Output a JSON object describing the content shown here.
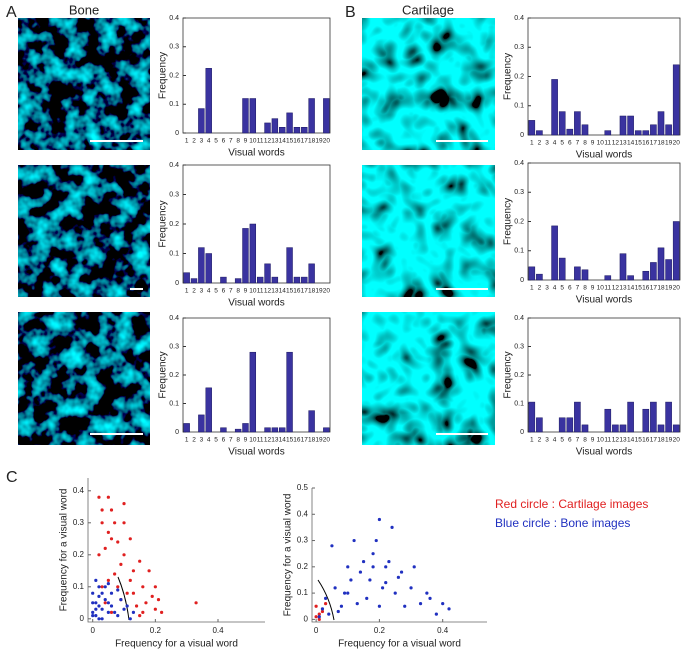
{
  "panel_labels": [
    "A",
    "B",
    "C"
  ],
  "image_titles": [
    "Bone",
    "Cartilage"
  ],
  "chart_data": [
    {
      "type": "bar",
      "xlabel": "Visual words",
      "ylabel": "Frequency",
      "color": "#3a33a0",
      "categories": [
        "1",
        "2",
        "3",
        "4",
        "5",
        "6",
        "7",
        "8",
        "9",
        "10",
        "11",
        "12",
        "13",
        "14",
        "15",
        "16",
        "17",
        "18",
        "19",
        "20"
      ],
      "values": [
        0,
        0,
        0.085,
        0.225,
        0,
        0,
        0,
        0,
        0.12,
        0.12,
        0,
        0.035,
        0.05,
        0.02,
        0.07,
        0.02,
        0.02,
        0.12,
        0,
        0.12
      ],
      "ylim": [
        0,
        0.4
      ],
      "yticks": [
        0,
        0.1,
        0.2,
        0.3,
        0.4
      ]
    },
    {
      "type": "bar",
      "xlabel": "Visual words",
      "ylabel": "Frequency",
      "color": "#3a33a0",
      "categories": [
        "1",
        "2",
        "3",
        "4",
        "5",
        "6",
        "7",
        "8",
        "9",
        "10",
        "11",
        "12",
        "13",
        "14",
        "15",
        "16",
        "17",
        "18",
        "19",
        "20"
      ],
      "values": [
        0.035,
        0.015,
        0.12,
        0.1,
        0,
        0.02,
        0,
        0.015,
        0.185,
        0.2,
        0.02,
        0.065,
        0.02,
        0,
        0.12,
        0.02,
        0.02,
        0.065,
        0,
        0
      ],
      "ylim": [
        0,
        0.4
      ],
      "yticks": [
        0,
        0.1,
        0.2,
        0.3,
        0.4
      ]
    },
    {
      "type": "bar",
      "xlabel": "Visual words",
      "ylabel": "Frequency",
      "color": "#3a33a0",
      "categories": [
        "1",
        "2",
        "3",
        "4",
        "5",
        "6",
        "7",
        "8",
        "9",
        "10",
        "11",
        "12",
        "13",
        "14",
        "15",
        "16",
        "17",
        "18",
        "19",
        "20"
      ],
      "values": [
        0.03,
        0,
        0.06,
        0.155,
        0,
        0.015,
        0,
        0.01,
        0.03,
        0.28,
        0,
        0.015,
        0.015,
        0.015,
        0.28,
        0,
        0,
        0.075,
        0,
        0.015
      ],
      "ylim": [
        0,
        0.4
      ],
      "yticks": [
        0,
        0.1,
        0.2,
        0.3,
        0.4
      ]
    },
    {
      "type": "bar",
      "xlabel": "Visual words",
      "ylabel": "Frequency",
      "color": "#3a33a0",
      "categories": [
        "1",
        "2",
        "3",
        "4",
        "5",
        "6",
        "7",
        "8",
        "9",
        "10",
        "11",
        "12",
        "13",
        "14",
        "15",
        "16",
        "17",
        "18",
        "19",
        "20"
      ],
      "values": [
        0.05,
        0.015,
        0,
        0.19,
        0.08,
        0.02,
        0.08,
        0.035,
        0,
        0,
        0.015,
        0,
        0.065,
        0.065,
        0.015,
        0.015,
        0.035,
        0.08,
        0.035,
        0.24
      ],
      "ylim": [
        0,
        0.4
      ],
      "yticks": [
        0,
        0.1,
        0.2,
        0.3,
        0.4
      ]
    },
    {
      "type": "bar",
      "xlabel": "Visual words",
      "ylabel": "Frequency",
      "color": "#3a33a0",
      "categories": [
        "1",
        "2",
        "3",
        "4",
        "5",
        "6",
        "7",
        "8",
        "9",
        "10",
        "11",
        "12",
        "13",
        "14",
        "15",
        "16",
        "17",
        "18",
        "19",
        "20"
      ],
      "values": [
        0.045,
        0.02,
        0,
        0.185,
        0.075,
        0,
        0.045,
        0.035,
        0,
        0,
        0.015,
        0,
        0.09,
        0.015,
        0,
        0.03,
        0.06,
        0.11,
        0.07,
        0.2
      ],
      "ylim": [
        0,
        0.4
      ],
      "yticks": [
        0,
        0.1,
        0.2,
        0.3,
        0.4
      ]
    },
    {
      "type": "bar",
      "xlabel": "Visual words",
      "ylabel": "Frequency",
      "color": "#3a33a0",
      "categories": [
        "1",
        "2",
        "3",
        "4",
        "5",
        "6",
        "7",
        "8",
        "9",
        "10",
        "11",
        "12",
        "13",
        "14",
        "15",
        "16",
        "17",
        "18",
        "19",
        "20"
      ],
      "values": [
        0.105,
        0.05,
        0,
        0,
        0.05,
        0.05,
        0.105,
        0.025,
        0,
        0,
        0.08,
        0.025,
        0.025,
        0.105,
        0,
        0.08,
        0.105,
        0.025,
        0.105,
        0.025
      ],
      "ylim": [
        0,
        0.4
      ],
      "yticks": [
        0,
        0.1,
        0.2,
        0.3,
        0.4
      ]
    },
    {
      "type": "scatter",
      "xlabel": "Frequency for a visual word",
      "ylabel": "Frequency for a visual word",
      "legend": true,
      "xlim": [
        -0.015,
        0.55
      ],
      "ylim": [
        -0.01,
        0.44
      ],
      "xticks": [
        0,
        0.2,
        0.4
      ],
      "yticks": [
        0,
        0.1,
        0.2,
        0.3,
        0.4
      ],
      "series": [
        {
          "name": "Red circle : Cartilage images",
          "color": "#e02020",
          "x": [
            0.02,
            0.03,
            0.03,
            0.05,
            0.05,
            0.06,
            0.07,
            0.02,
            0.04,
            0.08,
            0.1,
            0.1,
            0.12,
            0.13,
            0.15,
            0.16,
            0.18,
            0.2,
            0.05,
            0.07,
            0.09,
            0.11,
            0.14,
            0.17,
            0.19,
            0.22,
            0.04,
            0.06,
            0.08,
            0.12,
            0.16,
            0.21,
            0.33,
            0.03,
            0.09,
            0.13,
            0.2,
            0.06,
            0.1,
            0.15
          ],
          "values": [
            0.38,
            0.34,
            0.3,
            0.38,
            0.27,
            0.34,
            0.3,
            0.2,
            0.22,
            0.24,
            0.3,
            0.2,
            0.25,
            0.15,
            0.18,
            0.1,
            0.15,
            0.1,
            0.12,
            0.14,
            0.06,
            0.08,
            0.04,
            0.05,
            0.07,
            0.02,
            0.05,
            0.02,
            0.1,
            0.12,
            0.02,
            0.06,
            0.05,
            0.1,
            0.17,
            0.08,
            0.03,
            0.25,
            0.36,
            0.01
          ]
        },
        {
          "name": "Blue circle : Bone images",
          "color": "#2030c0",
          "x": [
            0,
            0.01,
            0.02,
            0.03,
            0.04,
            0.05,
            0.06,
            0.08,
            0.1,
            0.12,
            0,
            0.01,
            0.02,
            0.03,
            0.05,
            0.07,
            0.09,
            0,
            0.02,
            0.04,
            0.06,
            0.01,
            0.03,
            0,
            0.02,
            0.11,
            0.13,
            0.05,
            0.08,
            0.01
          ],
          "values": [
            0.08,
            0.05,
            0.1,
            0.03,
            0.06,
            0.02,
            0.04,
            0.01,
            0.03,
            0,
            0.02,
            0.12,
            0.04,
            0.08,
            0.05,
            0.02,
            0.06,
            0.01,
            0,
            0.1,
            0.08,
            0.03,
            0,
            0.05,
            0.07,
            0.04,
            0.02,
            0.11,
            0.09,
            0.01
          ]
        }
      ]
    },
    {
      "type": "scatter",
      "xlabel": "Frequency for a visual word",
      "ylabel": "Frequency for a visual word",
      "xlim": [
        -0.013,
        0.54
      ],
      "ylim": [
        -0.01,
        0.5
      ],
      "xticks": [
        0,
        0.2,
        0.4
      ],
      "yticks": [
        0,
        0.1,
        0.2,
        0.3,
        0.4,
        0.5
      ],
      "series": [
        {
          "color": "#e02020",
          "x": [
            0,
            0.01,
            0,
            0.02,
            0.01,
            0.03
          ],
          "values": [
            0.05,
            0.02,
            0.01,
            0.03,
            0,
            0.06
          ]
        },
        {
          "color": "#2030c0",
          "x": [
            0.05,
            0.08,
            0.1,
            0.12,
            0.15,
            0.17,
            0.18,
            0.2,
            0.22,
            0.24,
            0.25,
            0.27,
            0.3,
            0.33,
            0.36,
            0.4,
            0.42,
            0.06,
            0.09,
            0.11,
            0.14,
            0.16,
            0.19,
            0.21,
            0.23,
            0.26,
            0.28,
            0.35,
            0.02,
            0.04,
            0.03,
            0.07,
            0.13,
            0.18,
            0.2,
            0.22,
            0.31,
            0.38,
            0.01,
            0.1
          ],
          "values": [
            0.28,
            0.05,
            0.2,
            0.3,
            0.22,
            0.15,
            0.25,
            0.38,
            0.2,
            0.35,
            0.1,
            0.18,
            0.12,
            0.06,
            0.08,
            0.06,
            0.04,
            0.12,
            0.1,
            0.15,
            0.18,
            0.08,
            0.3,
            0.12,
            0.22,
            0.16,
            0.05,
            0.1,
            0.04,
            0.02,
            0.08,
            0.03,
            0.06,
            0.2,
            0.05,
            0.14,
            0.2,
            0.02,
            0.01,
            0.1
          ]
        }
      ]
    }
  ]
}
